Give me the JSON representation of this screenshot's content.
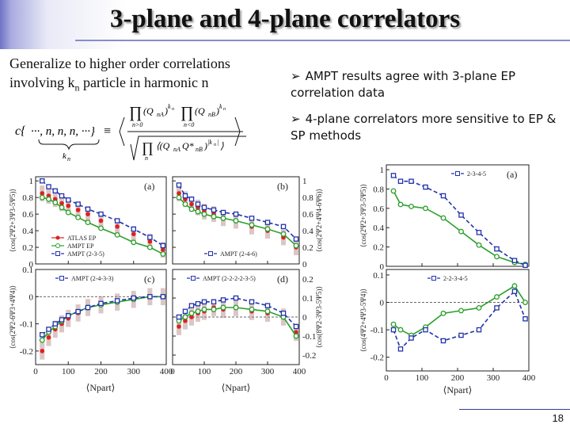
{
  "title": "3-plane and 4-plane correlators",
  "left_text": {
    "line1": "Generalize to higher order correlations",
    "line2_pre": "involving k",
    "line2_sub": "n",
    "line2_post": " particle in harmonic n"
  },
  "bullets": [
    "AMPT results agree with 3-plane EP correlation data",
    "4-plane correlators more sensitive to EP & SP methods"
  ],
  "page_number": "18",
  "colors": {
    "data": "#e02020",
    "band": "#b08080",
    "ampt_ep": "#2aa02a",
    "ampt_sp": "#2233aa"
  },
  "chart_data": [
    {
      "type": "line",
      "panel_label": "(a)",
      "ylabel": "⟨cos(2Ψ2+3Ψ3-5Ψ5)⟩",
      "xlim": [
        0,
        400
      ],
      "ylim": [
        0,
        1.05
      ],
      "yticks": [
        "0",
        "0.2",
        "0.4",
        "0.6",
        "0.8",
        "1"
      ],
      "legend": [
        "ATLAS EP",
        "AMPT EP",
        "AMPT (2-3-5)"
      ],
      "x": [
        20,
        40,
        60,
        80,
        100,
        130,
        160,
        200,
        250,
        300,
        350,
        390
      ],
      "series": [
        {
          "name": "ATLAS EP",
          "values": [
            0.85,
            0.82,
            0.78,
            0.73,
            0.7,
            0.65,
            0.6,
            0.52,
            0.45,
            0.36,
            0.27,
            0.17
          ]
        },
        {
          "name": "AMPT EP",
          "values": [
            0.8,
            0.78,
            0.74,
            0.68,
            0.62,
            0.56,
            0.5,
            0.43,
            0.35,
            0.26,
            0.2,
            0.12
          ]
        },
        {
          "name": "AMPT (2-3-5)",
          "values": [
            1.0,
            0.93,
            0.88,
            0.82,
            0.77,
            0.72,
            0.66,
            0.6,
            0.52,
            0.42,
            0.32,
            0.22
          ]
        }
      ]
    },
    {
      "type": "line",
      "panel_label": "(b)",
      "ylabel": "⟨cos(2Ψ2+4Ψ4-6Ψ6)⟩",
      "xlim": [
        0,
        400
      ],
      "ylim": [
        0,
        1.05
      ],
      "yticks": [
        "0",
        "0.2",
        "0.4",
        "0.6",
        "0.8",
        "1"
      ],
      "legend": [
        "AMPT (2-4-6)"
      ],
      "x": [
        20,
        40,
        60,
        80,
        100,
        130,
        160,
        200,
        250,
        300,
        350,
        390
      ],
      "series": [
        {
          "name": "ATLAS EP",
          "values": [
            0.85,
            0.78,
            0.72,
            0.68,
            0.63,
            0.6,
            0.55,
            0.52,
            0.45,
            0.4,
            0.32,
            0.2
          ]
        },
        {
          "name": "AMPT EP",
          "values": [
            0.8,
            0.72,
            0.66,
            0.63,
            0.6,
            0.57,
            0.55,
            0.52,
            0.47,
            0.42,
            0.36,
            0.22
          ]
        },
        {
          "name": "AMPT (2-4-6)",
          "values": [
            0.95,
            0.82,
            0.78,
            0.72,
            0.68,
            0.65,
            0.62,
            0.6,
            0.55,
            0.5,
            0.45,
            0.3
          ]
        }
      ]
    },
    {
      "type": "line",
      "panel_label": "(c)",
      "ylabel": "⟨cos(2Ψ2-6Ψ3+4Ψ4)⟩",
      "xlim": [
        0,
        400
      ],
      "ylim": [
        -0.25,
        0.1
      ],
      "yticks": [
        "-0.2",
        "-0.1",
        "0",
        "0.1"
      ],
      "legend": [
        "AMPT (2-4-3-3)"
      ],
      "x": [
        20,
        40,
        60,
        80,
        100,
        130,
        160,
        200,
        250,
        300,
        350,
        390
      ],
      "series": [
        {
          "name": "ATLAS EP",
          "values": [
            -0.2,
            -0.15,
            -0.12,
            -0.1,
            -0.08,
            -0.06,
            -0.04,
            -0.03,
            -0.02,
            -0.01,
            0.0,
            0.0
          ]
        },
        {
          "name": "AMPT EP",
          "values": [
            -0.16,
            -0.13,
            -0.11,
            -0.09,
            -0.07,
            -0.055,
            -0.04,
            -0.03,
            -0.02,
            -0.01,
            0.0,
            0.0
          ]
        },
        {
          "name": "AMPT (2-4-3-3)",
          "values": [
            -0.14,
            -0.12,
            -0.1,
            -0.085,
            -0.07,
            -0.055,
            -0.04,
            -0.025,
            -0.015,
            -0.005,
            0.0,
            0.0
          ]
        }
      ]
    },
    {
      "type": "line",
      "panel_label": "(d)",
      "ylabel": "⟨cos(8Ψ2-3Ψ3-5Ψ5)⟩",
      "xlim": [
        0,
        400
      ],
      "ylim": [
        -0.25,
        0.25
      ],
      "yticks": [
        "-0.2",
        "-0.1",
        "0",
        "0.1",
        "0.2"
      ],
      "legend": [
        "AMPT (2-2-2-2-3-5)"
      ],
      "x": [
        20,
        40,
        60,
        80,
        100,
        130,
        160,
        200,
        250,
        300,
        350,
        390
      ],
      "series": [
        {
          "name": "ATLAS EP",
          "values": [
            -0.05,
            -0.02,
            0.0,
            0.02,
            0.03,
            0.05,
            0.04,
            0.05,
            0.03,
            0.02,
            0.0,
            -0.08
          ]
        },
        {
          "name": "AMPT EP",
          "values": [
            -0.02,
            0.0,
            0.02,
            0.03,
            0.04,
            0.04,
            0.05,
            0.05,
            0.04,
            0.03,
            0.0,
            -0.1
          ]
        },
        {
          "name": "AMPT (2-2-2-2-3-5)",
          "values": [
            0.0,
            0.03,
            0.06,
            0.07,
            0.08,
            0.08,
            0.09,
            0.1,
            0.08,
            0.06,
            0.02,
            -0.05
          ]
        }
      ]
    },
    {
      "type": "line",
      "panel_label": "(a)",
      "ylabel": "⟨cos(2Ψ2+3Ψ3-5Ψ5)⟩",
      "xlabel": "⟨Npart⟩",
      "xlim": [
        0,
        400
      ],
      "ylim": [
        0,
        1.05
      ],
      "yticks": [
        "0",
        "0.2",
        "0.4",
        "0.6",
        "0.8",
        "1"
      ],
      "legend": [
        "2-3-4-5"
      ],
      "x": [
        20,
        40,
        70,
        110,
        160,
        210,
        260,
        310,
        360,
        390
      ],
      "series": [
        {
          "name": "AMPT EP",
          "values": [
            0.78,
            0.64,
            0.62,
            0.6,
            0.5,
            0.36,
            0.22,
            0.1,
            0.04,
            0.02
          ]
        },
        {
          "name": "2-3-4-5",
          "values": [
            0.94,
            0.88,
            0.88,
            0.82,
            0.73,
            0.53,
            0.35,
            0.18,
            0.06,
            0.01
          ]
        }
      ]
    },
    {
      "type": "line",
      "panel_label": "",
      "ylabel": "⟨cos(4Ψ2+4Ψ3-5Ψ4)⟩",
      "xlabel": "⟨Npart⟩",
      "xlim": [
        0,
        400
      ],
      "ylim": [
        -0.25,
        0.12
      ],
      "yticks": [
        "-0.2",
        "-0.1",
        "0",
        "0.1"
      ],
      "xticks": [
        "0",
        "100",
        "200",
        "300",
        "400"
      ],
      "legend": [
        "2-2-3-4-5"
      ],
      "x": [
        20,
        40,
        70,
        110,
        160,
        210,
        260,
        310,
        360,
        390
      ],
      "series": [
        {
          "name": "AMPT EP",
          "values": [
            -0.08,
            -0.1,
            -0.12,
            -0.09,
            -0.04,
            -0.03,
            -0.02,
            0.02,
            0.06,
            0.0
          ]
        },
        {
          "name": "2-2-3-4-5",
          "values": [
            -0.1,
            -0.17,
            -0.13,
            -0.1,
            -0.14,
            -0.12,
            -0.1,
            -0.02,
            0.04,
            -0.06
          ]
        }
      ]
    }
  ]
}
